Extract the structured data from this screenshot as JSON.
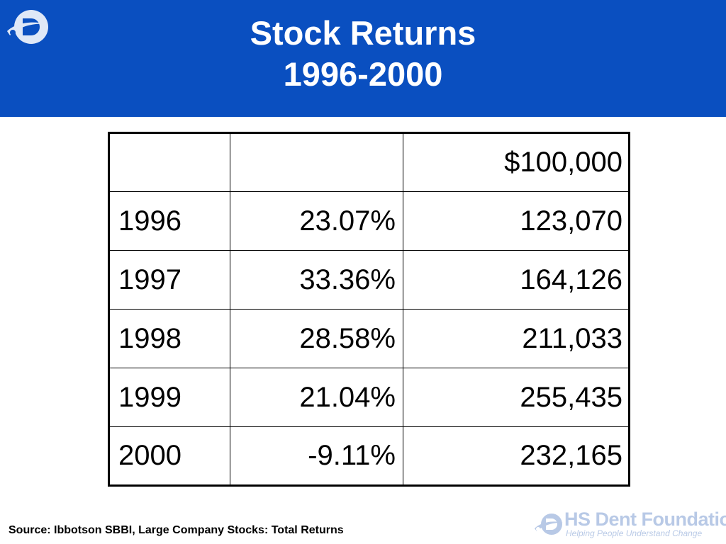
{
  "header": {
    "title_line1": "Stock Returns",
    "title_line2": "1996-2000",
    "background_color": "#0a4fc0",
    "logo_icon": "hs-dent-swoosh-icon"
  },
  "table": {
    "rows": [
      {
        "year": "",
        "return": "",
        "value": "$100,000"
      },
      {
        "year": "1996",
        "return": "23.07%",
        "value": "123,070"
      },
      {
        "year": "1997",
        "return": "33.36%",
        "value": "164,126"
      },
      {
        "year": "1998",
        "return": "28.58%",
        "value": "211,033"
      },
      {
        "year": "1999",
        "return": "21.04%",
        "value": "255,435"
      },
      {
        "year": "2000",
        "return": "-9.11%",
        "value": "232,165"
      }
    ]
  },
  "footer": {
    "source": "Source: Ibbotson SBBI, Large Company Stocks: Total Returns",
    "brand_name": "HS Dent Foundation",
    "brand_tagline": "Helping People Understand Change",
    "brand_color": "#b8c9e6"
  }
}
